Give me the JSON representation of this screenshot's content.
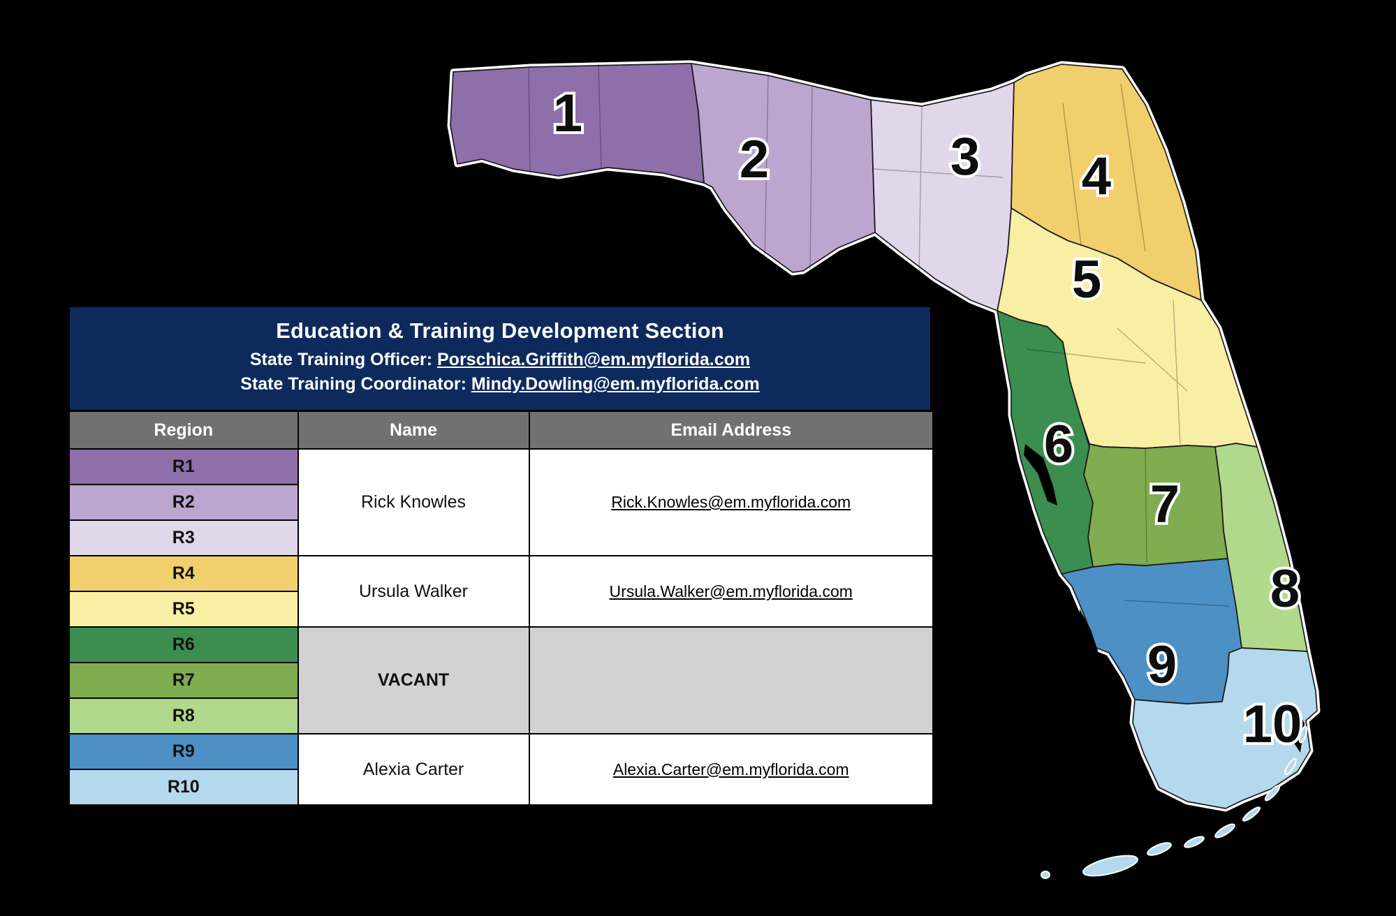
{
  "panel": {
    "header_bg": "#0e2a5c",
    "title": "Education & Training Development Section",
    "officer_label": "State Training Officer:",
    "officer_email": "Porschica.Griffith@em.myflorida.com",
    "coordinator_label": "State Training Coordinator:",
    "coordinator_email": "Mindy.Dowling@em.myflorida.com",
    "column_header_bg": "#717171",
    "columns": [
      "Region",
      "Name",
      "Email Address"
    ],
    "vacant_bg": "#d2d2d2"
  },
  "regions": [
    {
      "id": "R1",
      "map_label": "1",
      "color": "#8f6fa9"
    },
    {
      "id": "R2",
      "map_label": "2",
      "color": "#bca6cf"
    },
    {
      "id": "R3",
      "map_label": "3",
      "color": "#e2d6eb"
    },
    {
      "id": "R4",
      "map_label": "4",
      "color": "#f2cf6d"
    },
    {
      "id": "R5",
      "map_label": "5",
      "color": "#f8efa5"
    },
    {
      "id": "R6",
      "map_label": "6",
      "color": "#3b8e4f"
    },
    {
      "id": "R7",
      "map_label": "7",
      "color": "#7fad50"
    },
    {
      "id": "R8",
      "map_label": "8",
      "color": "#b1d98b"
    },
    {
      "id": "R9",
      "map_label": "9",
      "color": "#4d90c5"
    },
    {
      "id": "R10",
      "map_label": "10",
      "color": "#b5d9ec"
    }
  ],
  "assignments": [
    {
      "name": "Rick Knowles",
      "email": "Rick.Knowles@em.myflorida.com"
    },
    {
      "name": "Ursula Walker",
      "email": "Ursula.Walker@em.myflorida.com"
    },
    {
      "name": "VACANT",
      "email": ""
    },
    {
      "name": "Alexia Carter",
      "email": "Alexia.Carter@em.myflorida.com"
    }
  ]
}
